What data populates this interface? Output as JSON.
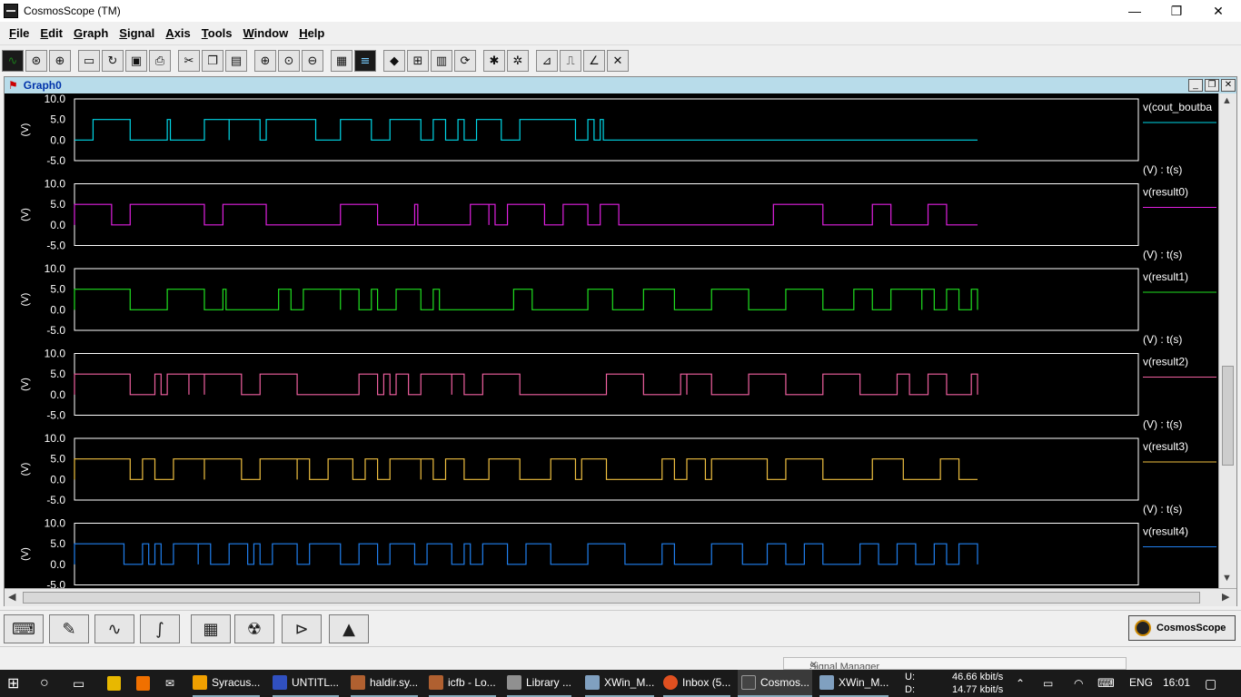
{
  "window": {
    "title": "CosmosScope (TM)",
    "controls": {
      "minimize": "—",
      "maximize": "❐",
      "close": "✕"
    }
  },
  "menu": [
    "File",
    "Edit",
    "Graph",
    "Signal",
    "Axis",
    "Tools",
    "Window",
    "Help"
  ],
  "toolbar": [
    "waveform-icon",
    "zoom-circle-icon",
    "target-icon",
    "open-folder-icon",
    "reload-icon",
    "save-icon",
    "print-icon",
    "cut-icon",
    "copy-icon",
    "paste-icon",
    "zoom-in-icon",
    "zoom-fit-icon",
    "zoom-out-icon",
    "stack-icon",
    "color-bars-icon",
    "diamond-icon",
    "grid-icon",
    "bars-icon",
    "refresh-icon",
    "bug-icon",
    "bug2-icon",
    "measure-rise-icon",
    "measure-pulse-icon",
    "measure-slope-icon",
    "measure-cross-icon"
  ],
  "graph": {
    "title": "Graph0",
    "controls": {
      "minimize": "_",
      "restore": "❐",
      "close": "✕"
    }
  },
  "chart_data": [
    {
      "type": "line",
      "title": "",
      "signal": "v(cout_boutbar)",
      "signal_display": "v(cout_boutba",
      "ylabel": "(V)",
      "xunit_label": "(V) : t(s)",
      "yticks": [
        "10.0",
        "5.0",
        "0.0",
        "-5.0"
      ],
      "ylim": [
        -5,
        10
      ],
      "color": "#00d8e8",
      "high": 5,
      "low": 0,
      "pulses": [
        [
          0.0,
          0.06
        ],
        [
          0.12,
          0.125
        ],
        [
          0.18,
          0.22
        ],
        [
          0.22,
          0.27
        ],
        [
          0.28,
          0.36
        ],
        [
          0.4,
          0.45
        ],
        [
          0.48,
          0.53
        ],
        [
          0.55,
          0.57
        ],
        [
          0.59,
          0.6
        ],
        [
          0.62,
          0.66
        ],
        [
          0.69,
          0.78
        ],
        [
          0.8,
          0.81
        ],
        [
          0.82,
          0.825
        ],
        [
          1.52,
          1.55
        ]
      ],
      "t_end": 2.5
    },
    {
      "type": "line",
      "title": "",
      "signal": "v(result0)",
      "signal_display": "v(result0)",
      "ylabel": "(V)",
      "xunit_label": "(V) : t(s)",
      "yticks": [
        "10.0",
        "5.0",
        "0.0",
        "-5.0"
      ],
      "ylim": [
        -5,
        10
      ],
      "color": "#e020e0",
      "high": 5,
      "low": 0,
      "start_high": true,
      "pulses": [
        [
          -0.03,
          0.03
        ],
        [
          0.06,
          0.18
        ],
        [
          0.21,
          0.28
        ],
        [
          0.4,
          0.46
        ],
        [
          0.52,
          0.525
        ],
        [
          0.61,
          0.64
        ],
        [
          0.64,
          0.65
        ],
        [
          0.67,
          0.73
        ],
        [
          0.76,
          0.8
        ],
        [
          0.82,
          0.85
        ],
        [
          1.1,
          1.18
        ],
        [
          1.26,
          1.29
        ],
        [
          1.35,
          1.38
        ]
      ],
      "t_end": 2.5
    },
    {
      "type": "line",
      "title": "",
      "signal": "v(result1)",
      "signal_display": "v(result1)",
      "ylabel": "(V)",
      "xunit_label": "(V) : t(s)",
      "yticks": [
        "10.0",
        "5.0",
        "0.0",
        "-5.0"
      ],
      "ylim": [
        -5,
        10
      ],
      "color": "#20e020",
      "high": 5,
      "low": 0,
      "start_high": true,
      "pulses": [
        [
          -0.03,
          0.06
        ],
        [
          0.12,
          0.18
        ],
        [
          0.21,
          0.215
        ],
        [
          0.3,
          0.32
        ],
        [
          0.34,
          0.4
        ],
        [
          0.4,
          0.43
        ],
        [
          0.45,
          0.46
        ],
        [
          0.49,
          0.53
        ],
        [
          0.55,
          0.56
        ],
        [
          0.68,
          0.71
        ],
        [
          0.8,
          0.84
        ],
        [
          0.89,
          0.94
        ],
        [
          1.0,
          1.06
        ],
        [
          1.12,
          1.18
        ],
        [
          1.23,
          1.26
        ],
        [
          1.29,
          1.34
        ],
        [
          1.34,
          1.36
        ],
        [
          1.38,
          1.4
        ],
        [
          1.42,
          1.45
        ]
      ],
      "t_end": 2.5
    },
    {
      "type": "line",
      "title": "",
      "signal": "v(result2)",
      "signal_display": "v(result2)",
      "ylabel": "(V)",
      "xunit_label": "(V) : t(s)",
      "yticks": [
        "10.0",
        "5.0",
        "0.0",
        "-5.0"
      ],
      "ylim": [
        -5,
        10
      ],
      "color": "#f060a0",
      "high": 5,
      "low": 0,
      "start_high": true,
      "pulses": [
        [
          -0.03,
          0.06
        ],
        [
          0.1,
          0.11
        ],
        [
          0.12,
          0.155
        ],
        [
          0.155,
          0.18
        ],
        [
          0.18,
          0.24
        ],
        [
          0.27,
          0.33
        ],
        [
          0.43,
          0.46
        ],
        [
          0.47,
          0.48
        ],
        [
          0.49,
          0.51
        ],
        [
          0.53,
          0.58
        ],
        [
          0.58,
          0.6
        ],
        [
          0.63,
          0.69
        ],
        [
          0.83,
          0.89
        ],
        [
          0.95,
          0.96
        ],
        [
          0.96,
          1.0
        ],
        [
          1.06,
          1.12
        ],
        [
          1.18,
          1.24
        ],
        [
          1.3,
          1.32
        ],
        [
          1.35,
          1.38
        ],
        [
          1.42,
          1.44
        ]
      ],
      "t_end": 2.5
    },
    {
      "type": "line",
      "title": "",
      "signal": "v(result3)",
      "signal_display": "v(result3)",
      "ylabel": "(V)",
      "xunit_label": "(V) : t(s)",
      "yticks": [
        "10.0",
        "5.0",
        "0.0",
        "-5.0"
      ],
      "ylim": [
        -5,
        10
      ],
      "color": "#f0c040",
      "high": 5,
      "low": 0,
      "start_high": true,
      "pulses": [
        [
          -0.03,
          0.06
        ],
        [
          0.08,
          0.1
        ],
        [
          0.13,
          0.18
        ],
        [
          0.18,
          0.24
        ],
        [
          0.27,
          0.33
        ],
        [
          0.33,
          0.35
        ],
        [
          0.38,
          0.42
        ],
        [
          0.44,
          0.46
        ],
        [
          0.48,
          0.53
        ],
        [
          0.53,
          0.55
        ],
        [
          0.57,
          0.6
        ],
        [
          0.64,
          0.69
        ],
        [
          0.74,
          0.78
        ],
        [
          0.79,
          0.83
        ],
        [
          0.92,
          0.94
        ],
        [
          0.96,
          0.99
        ],
        [
          1.0,
          1.09
        ],
        [
          1.12,
          1.18
        ],
        [
          1.26,
          1.31
        ],
        [
          1.37,
          1.4
        ],
        [
          1.43,
          1.44
        ]
      ],
      "t_end": 2.5
    },
    {
      "type": "line",
      "title": "",
      "signal": "v(result4)",
      "signal_display": "v(result4)",
      "ylabel": "(V)",
      "xunit_label": "",
      "yticks": [
        "10.0",
        "5.0",
        "0.0",
        "-5.0"
      ],
      "ylim": [
        -5,
        10
      ],
      "color": "#2080f0",
      "high": 5,
      "low": 0,
      "start_high": true,
      "pulses": [
        [
          -0.03,
          0.05
        ],
        [
          0.08,
          0.09
        ],
        [
          0.1,
          0.11
        ],
        [
          0.13,
          0.17
        ],
        [
          0.17,
          0.19
        ],
        [
          0.22,
          0.25
        ],
        [
          0.26,
          0.27
        ],
        [
          0.29,
          0.33
        ],
        [
          0.35,
          0.4
        ],
        [
          0.43,
          0.46
        ],
        [
          0.48,
          0.52
        ],
        [
          0.54,
          0.58
        ],
        [
          0.6,
          0.61
        ],
        [
          0.63,
          0.67
        ],
        [
          0.7,
          0.74
        ],
        [
          0.8,
          0.86
        ],
        [
          0.92,
          0.94
        ],
        [
          1.0,
          1.05
        ],
        [
          1.09,
          1.12
        ],
        [
          1.15,
          1.18
        ],
        [
          1.24,
          1.27
        ],
        [
          1.3,
          1.33
        ],
        [
          1.36,
          1.38
        ],
        [
          1.4,
          1.44
        ]
      ],
      "t_end": 2.5
    }
  ],
  "bottom_tools": [
    "keyboard-icon",
    "annotate-icon",
    "scope-icon",
    "curve-icon",
    "calculator-icon",
    "radiation-icon",
    "circuit-icon",
    "matlab-icon"
  ],
  "brand": "CosmosScope",
  "signal_manager": "Signal Manager",
  "taskbar": {
    "items": [
      {
        "label": "Syracus...",
        "color": "#f0a000"
      },
      {
        "label": "UNTITL...",
        "color": "#3050c0"
      },
      {
        "label": "haldir.sy...",
        "color": "#b06030"
      },
      {
        "label": "icfb - Lo...",
        "color": "#b06030"
      },
      {
        "label": "Library ...",
        "color": "#909090"
      },
      {
        "label": "XWin_M...",
        "color": "#80a0c0"
      },
      {
        "label": "Inbox (5...",
        "color": "#e05020"
      },
      {
        "label": "Cosmos...",
        "color": "#222222"
      },
      {
        "label": "XWin_M...",
        "color": "#80a0c0"
      }
    ],
    "net_upload": "46.66 kbit/s",
    "net_download": "14.77 kbit/s",
    "net_u_label": "U:",
    "net_d_label": "D:",
    "language": "ENG",
    "clock": "16:01"
  }
}
